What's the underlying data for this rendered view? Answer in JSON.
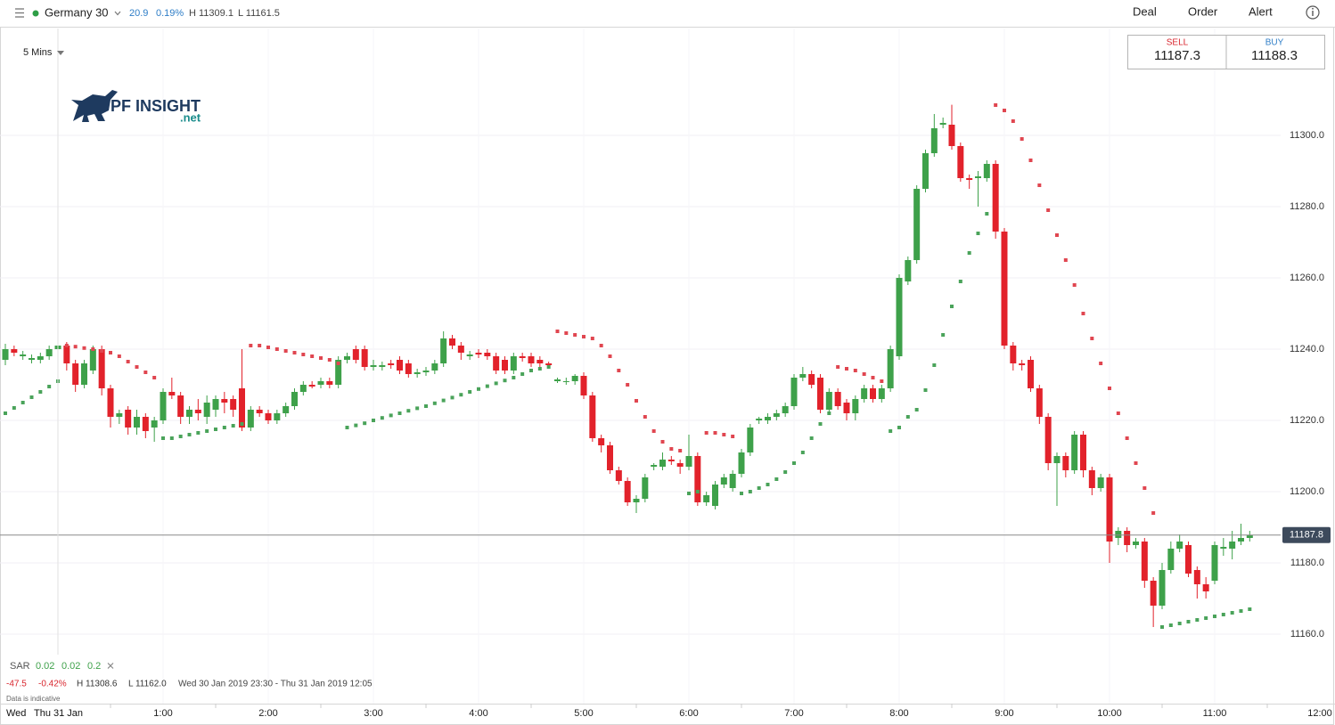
{
  "header": {
    "instrument": "Germany 30",
    "change": "20.9",
    "change_pct": "0.19%",
    "high": "H 11309.1",
    "low": "L 11161.5",
    "menu": [
      "Deal",
      "Order",
      "Alert"
    ]
  },
  "ticket": {
    "sell_label": "SELL",
    "sell_price": "11187.3",
    "buy_label": "BUY",
    "buy_price": "11188.3"
  },
  "interval": "5 Mins",
  "logo": {
    "name": "PF INSIGHT",
    "suffix": ".net"
  },
  "chart_data": {
    "type": "candlestick",
    "open": [
      11237,
      11240,
      11238,
      11237,
      11237,
      11238,
      11240,
      11241,
      11236,
      11230,
      11234,
      11240,
      11229,
      11221,
      11223,
      11218,
      11221,
      11218,
      11220,
      11228,
      11227,
      11221,
      11223,
      11221,
      11223,
      11226,
      11226,
      11229,
      11218,
      11223,
      11222,
      11220,
      11222,
      11224,
      11228,
      11230,
      11230,
      11231,
      11230,
      11237,
      11240,
      11240,
      11235,
      11235,
      11236,
      11237,
      11236,
      11233,
      11233.5,
      11234,
      11236,
      11243,
      11241,
      11238,
      11239,
      11239,
      11238,
      11237,
      11234,
      11238,
      11238,
      11237,
      11236,
      11231,
      11231,
      11231,
      11232.5,
      11227,
      11215,
      11213,
      11206,
      11203,
      11197,
      11198,
      11207,
      11207,
      11209,
      11208,
      11207,
      11210,
      11197,
      11196,
      11202,
      11201,
      11205,
      11211,
      11220,
      11220,
      11221,
      11222,
      11224,
      11232,
      11233,
      11232,
      11223,
      11228,
      11225,
      11222,
      11226,
      11229,
      11226,
      11229,
      11238,
      11259,
      11265,
      11285,
      11295,
      11303,
      11303,
      11297,
      11288,
      11288,
      11288,
      11292,
      11273,
      11241,
      11236,
      11237,
      11229,
      11221,
      11208,
      11210,
      11206,
      11216,
      11206,
      11201,
      11204,
      11187,
      11189,
      11185,
      11186,
      11175,
      11168,
      11178,
      11184,
      11185,
      11178,
      11174,
      11175,
      11184,
      11184,
      11186,
      11187
    ],
    "high": [
      11241.5,
      11241,
      11239.5,
      11238.5,
      11239,
      11241,
      11242.5,
      11242,
      11237,
      11237,
      11241,
      11241,
      11230,
      11223,
      11224,
      11223,
      11222,
      11221,
      11229,
      11232,
      11228,
      11224,
      11226,
      11227,
      11227,
      11228,
      11227,
      11240,
      11224,
      11224,
      11223,
      11223,
      11225,
      11229,
      11231,
      11231,
      11232,
      11232,
      11238,
      11239,
      11241,
      11241,
      11237,
      11236.5,
      11237,
      11238,
      11237,
      11234.5,
      11235,
      11237,
      11245,
      11244,
      11242,
      11239.5,
      11240,
      11240,
      11239,
      11238,
      11239,
      11239,
      11239,
      11238,
      11236.5,
      11232,
      11232,
      11233,
      11233.5,
      11228,
      11216,
      11214,
      11207,
      11204,
      11199,
      11205,
      11208,
      11211,
      11210,
      11209,
      11216,
      11211,
      11200,
      11203,
      11205,
      11206,
      11212,
      11219,
      11221,
      11222,
      11223,
      11225,
      11233,
      11235,
      11234,
      11233,
      11229,
      11229,
      11226,
      11227,
      11230,
      11230,
      11230,
      11241,
      11261,
      11266,
      11286,
      11296,
      11306,
      11305,
      11308.6,
      11298,
      11289,
      11290,
      11293,
      11293,
      11274,
      11242,
      11237,
      11238,
      11230,
      11222,
      11211,
      11211,
      11217,
      11217,
      11207,
      11205,
      11205,
      11190,
      11190,
      11187,
      11187,
      11176,
      11180,
      11186,
      11188,
      11186,
      11179,
      11176,
      11186,
      11187,
      11189,
      11191,
      11189
    ],
    "low": [
      11235.5,
      11238,
      11237,
      11236,
      11236,
      11237,
      11239,
      11234,
      11228,
      11229,
      11233,
      11227,
      11218,
      11219,
      11216,
      11216,
      11215,
      11214,
      11219,
      11226,
      11219,
      11219,
      11220,
      11219,
      11221,
      11222,
      11221,
      11217,
      11217,
      11221,
      11219,
      11219,
      11221,
      11223,
      11227,
      11229,
      11229,
      11229,
      11229,
      11236,
      11236,
      11234,
      11234,
      11234,
      11234.5,
      11233,
      11232,
      11232,
      11232.5,
      11233,
      11235,
      11240,
      11237,
      11237,
      11237.5,
      11237,
      11233,
      11233,
      11233,
      11236.5,
      11235,
      11235,
      11234.5,
      11230.5,
      11230,
      11230,
      11226,
      11214,
      11211,
      11205,
      11202,
      11196,
      11194,
      11197,
      11206,
      11206,
      11207.5,
      11205,
      11206,
      11196,
      11196,
      11195,
      11201,
      11200,
      11204,
      11210,
      11219,
      11219,
      11220,
      11221,
      11223,
      11231,
      11229,
      11222,
      11222,
      11223,
      11220,
      11220,
      11225,
      11225,
      11225,
      11228,
      11237,
      11258,
      11264,
      11284,
      11294,
      11302,
      11296,
      11287,
      11285,
      11280,
      11287,
      11271,
      11240,
      11234,
      11234,
      11228,
      11219,
      11206,
      11196,
      11204,
      11205,
      11204,
      11199,
      11200,
      11180,
      11185,
      11183,
      11184,
      11173,
      11162,
      11167,
      11177,
      11183,
      11176,
      11170,
      11170,
      11174,
      11182,
      11181,
      11185,
      11186
    ],
    "close": [
      11240,
      11239,
      11238.5,
      11237.5,
      11238,
      11240,
      11241,
      11236,
      11230,
      11236,
      11240,
      11229,
      11221,
      11222,
      11218,
      11221,
      11217,
      11220,
      11228,
      11227,
      11221,
      11223,
      11222,
      11225,
      11226,
      11225,
      11223,
      11218,
      11223,
      11222,
      11220,
      11222,
      11224,
      11228,
      11230,
      11229.5,
      11231,
      11230,
      11237,
      11238,
      11237,
      11235,
      11235.5,
      11235.5,
      11235.5,
      11234,
      11233,
      11233.5,
      11234,
      11236,
      11243,
      11241,
      11239,
      11238.5,
      11238.5,
      11238,
      11234,
      11234,
      11238,
      11237.5,
      11236,
      11236,
      11235.5,
      11231.5,
      11231,
      11232.5,
      11227,
      11215,
      11213,
      11206,
      11203,
      11197,
      11198,
      11204,
      11207.5,
      11209,
      11208.5,
      11207,
      11210,
      11197,
      11199,
      11202,
      11204,
      11205,
      11211,
      11218,
      11220.5,
      11221,
      11222,
      11224,
      11232,
      11233,
      11230,
      11223,
      11228,
      11224,
      11222,
      11226,
      11229,
      11226,
      11229,
      11240,
      11260,
      11265,
      11285,
      11295,
      11302,
      11303.5,
      11297,
      11288,
      11287.5,
      11288.5,
      11292,
      11273,
      11241,
      11236,
      11235.5,
      11229,
      11221,
      11208,
      11210,
      11206,
      11216,
      11206,
      11201,
      11204,
      11186,
      11189,
      11185,
      11186,
      11175,
      11168,
      11178,
      11184,
      11186,
      11177,
      11174,
      11172,
      11185,
      11184.5,
      11186,
      11187,
      11187.8
    ],
    "up_color": "#3ea14a",
    "down_color": "#e2222b",
    "sar": {
      "values": [
        11222,
        11223.5,
        11225,
        11226.5,
        11228,
        11229.5,
        11231,
        11241,
        11240.7,
        11240.3,
        11240,
        11239.5,
        11239,
        11238,
        11236.5,
        11235,
        11233.5,
        11232,
        11215,
        11215,
        11215.5,
        11216,
        11216.5,
        11217,
        11217.5,
        11218,
        11218.5,
        11219,
        11241,
        11241,
        11240.5,
        11240,
        11239.5,
        11239,
        11238.5,
        11238,
        11237.5,
        11237,
        11236,
        11218,
        11218.6,
        11219.2,
        11220,
        11220.7,
        11221.4,
        11222,
        11222.7,
        11223.4,
        11224,
        11224.8,
        11225.6,
        11226.4,
        11227.2,
        11228,
        11228.8,
        11229.6,
        11230.4,
        11231.2,
        11232,
        11233,
        11234,
        11234.5,
        11235,
        11245,
        11244.5,
        11244,
        11243.5,
        11243,
        11241,
        11238,
        11234,
        11230,
        11225.5,
        11221,
        11217,
        11214,
        11212,
        11211.5,
        11199.5,
        11200,
        11216.5,
        11216.5,
        11216,
        11215.5,
        11199.5,
        11200,
        11201,
        11202,
        11203.5,
        11205.5,
        11208,
        11211,
        11215,
        11219,
        11222,
        11235,
        11234.5,
        11234,
        11233,
        11232,
        11231,
        11217,
        11218,
        11221,
        11223,
        11228.5,
        11235.5,
        11244,
        11252,
        11259,
        11267,
        11272.5,
        11278,
        11308.5,
        11307,
        11304,
        11299,
        11293,
        11286,
        11279,
        11272,
        11265,
        11258,
        11250,
        11243,
        11236,
        11229,
        11222,
        11215,
        11208,
        11201,
        11194,
        11162,
        11162.5,
        11163,
        11163.5,
        11164,
        11164.5,
        11165,
        11165.5,
        11166,
        11166.5,
        11167
      ],
      "up_color": "#4aa35a",
      "down_color": "#e04650"
    },
    "last_price": 11187.8,
    "ylim": [
      11140.5,
      11330
    ],
    "yticks": [
      {
        "value": 11160,
        "label": "11160.0"
      },
      {
        "value": 11180,
        "label": "11180.0"
      },
      {
        "value": 11200,
        "label": "11200.0"
      },
      {
        "value": 11220,
        "label": "11220.0"
      },
      {
        "value": 11240,
        "label": "11240.0"
      },
      {
        "value": 11260,
        "label": "11260.0"
      },
      {
        "value": 11280,
        "label": "11280.0"
      },
      {
        "value": 11300,
        "label": "11300.0"
      }
    ],
    "xlim": [
      -0.61,
      151.73
    ],
    "xticks": [
      {
        "value": 18,
        "label": "1:00"
      },
      {
        "value": 30,
        "label": "2:00"
      },
      {
        "value": 42,
        "label": "3:00"
      },
      {
        "value": 54,
        "label": "4:00"
      },
      {
        "value": 66,
        "label": "5:00"
      },
      {
        "value": 78,
        "label": "6:00"
      },
      {
        "value": 90,
        "label": "7:00"
      },
      {
        "value": 102,
        "label": "8:00"
      },
      {
        "value": 114,
        "label": "9:00"
      },
      {
        "value": 126,
        "label": "10:00"
      },
      {
        "value": 138,
        "label": "11:00"
      },
      {
        "value": 150,
        "label": "12:00"
      }
    ],
    "grid": true
  },
  "study": {
    "name": "SAR",
    "params": [
      "0.02",
      "0.02",
      "0.2"
    ]
  },
  "summary": {
    "change": "-47.5",
    "change_pct": "-0.42%",
    "high": "H 11308.6",
    "low": "L 11162.0",
    "range": "Wed 30 Jan 2019 23:30 - Thu 31 Jan 2019 12:05",
    "note": "Data is indicative"
  },
  "crosshair": {
    "day": "Wed",
    "date": "Thu 31 Jan"
  }
}
